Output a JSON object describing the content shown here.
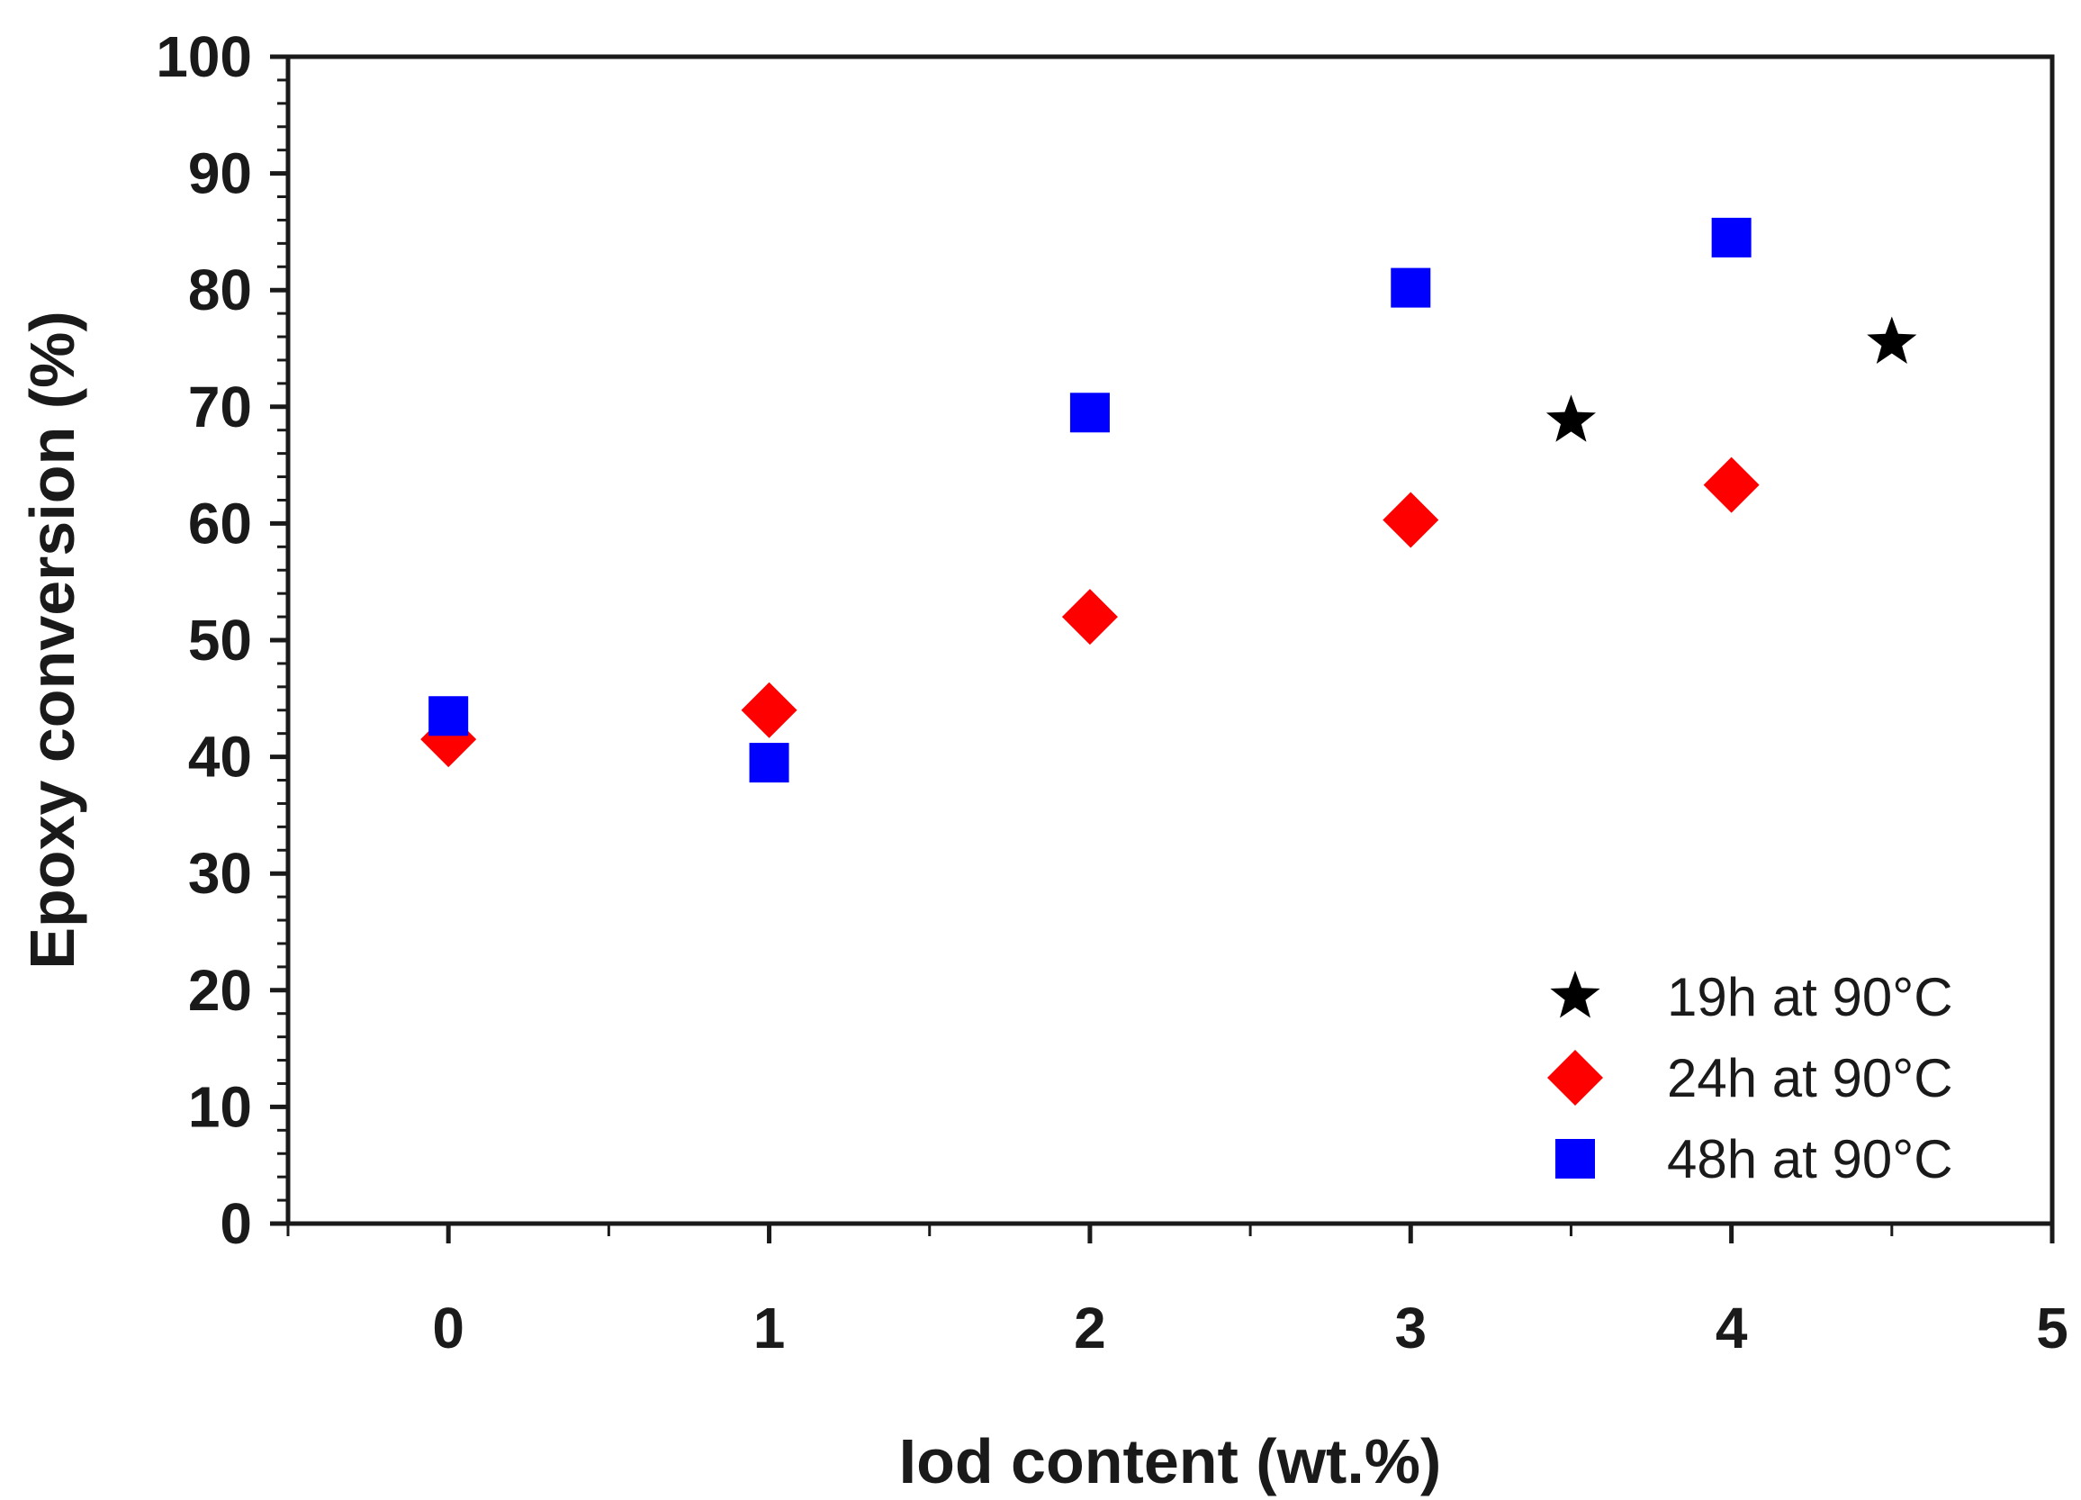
{
  "chart_data": {
    "type": "scatter",
    "title": "",
    "xlabel": "Iod content (wt.%)",
    "ylabel": "Epoxy conversion (%)",
    "xlim": [
      -0.5,
      5
    ],
    "ylim": [
      0,
      100
    ],
    "x_ticks": [
      0,
      1,
      2,
      3,
      4,
      5
    ],
    "x_minor_ticks": [
      -0.5,
      0.5,
      1.5,
      2.5,
      3.5,
      4.5
    ],
    "y_ticks": [
      0,
      10,
      20,
      30,
      40,
      50,
      60,
      70,
      80,
      90,
      100
    ],
    "y_minor_step": 2,
    "grid": false,
    "legend_position": "bottom-right",
    "series": [
      {
        "name": "19h at 90°C",
        "marker": "star",
        "color": "#000000",
        "points": [
          {
            "x": 3.5,
            "y": 68.8
          },
          {
            "x": 4.5,
            "y": 75.5
          }
        ]
      },
      {
        "name": "24h at 90°C",
        "marker": "diamond",
        "color": "#ff0000",
        "points": [
          {
            "x": 0,
            "y": 41.5
          },
          {
            "x": 1,
            "y": 44.0
          },
          {
            "x": 2,
            "y": 52.0
          },
          {
            "x": 3,
            "y": 60.3
          },
          {
            "x": 4,
            "y": 63.3
          }
        ]
      },
      {
        "name": "48h at 90°C",
        "marker": "square",
        "color": "#0000ff",
        "points": [
          {
            "x": 0,
            "y": 43.5
          },
          {
            "x": 1,
            "y": 39.5
          },
          {
            "x": 2,
            "y": 69.5
          },
          {
            "x": 3,
            "y": 80.2
          },
          {
            "x": 4,
            "y": 84.5
          }
        ]
      }
    ]
  }
}
